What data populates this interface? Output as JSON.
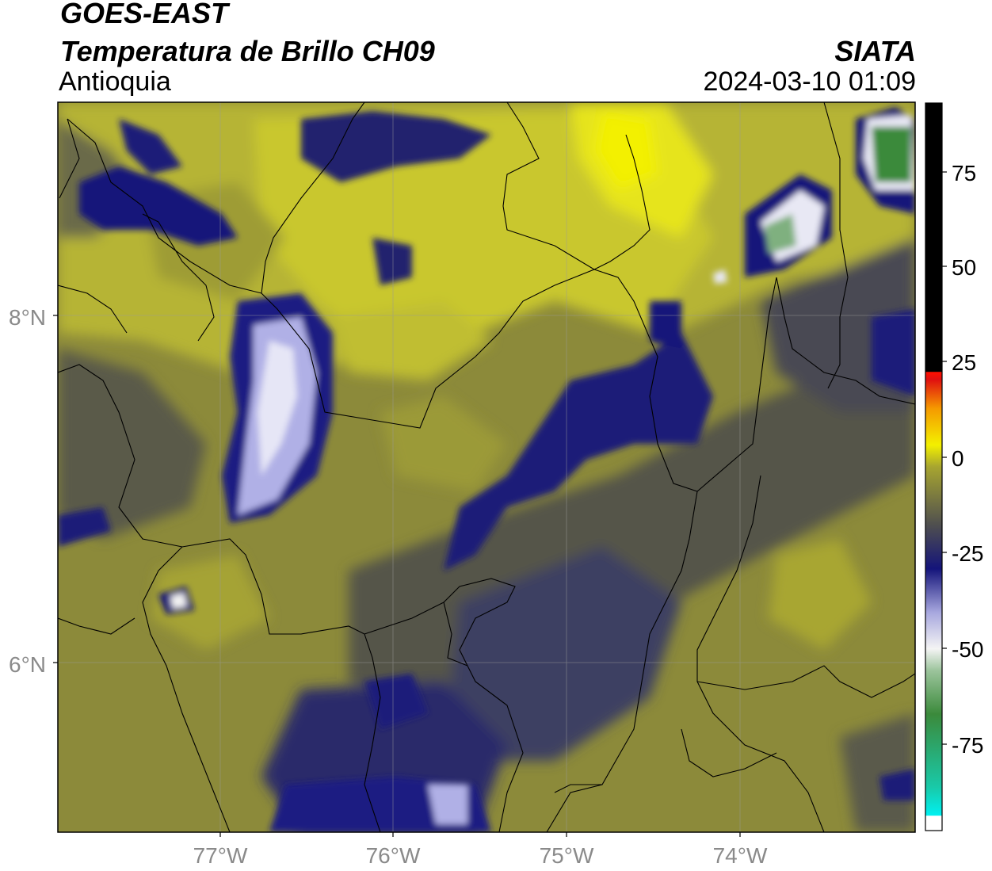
{
  "header": {
    "satellite": "GOES-EAST",
    "product": "Temperatura de Brillo CH09",
    "region": "Antioquia",
    "agency": "SIATA",
    "datetime": "2024-03-10 01:09"
  },
  "axes": {
    "lat_ticks": [
      "8°N",
      "6°N"
    ],
    "lon_ticks": [
      "77°W",
      "76°W",
      "75°W",
      "74°W"
    ]
  },
  "colorbar": {
    "ticks": [
      "75",
      "50",
      "25",
      "0",
      "-25",
      "-50",
      "-75"
    ],
    "colors": {
      "warm": "#000000",
      "red": "#e01010",
      "orange": "#f59a00",
      "yellow": "#f3f000",
      "olive": "#a7a530",
      "gray": "#4f4f4f",
      "navy": "#14147a",
      "lilac": "#a7a7de",
      "white": "#f4f4f4",
      "green": "#3b8a3b",
      "teal": "#19c9a8",
      "cyan": "#00f0f0"
    }
  }
}
